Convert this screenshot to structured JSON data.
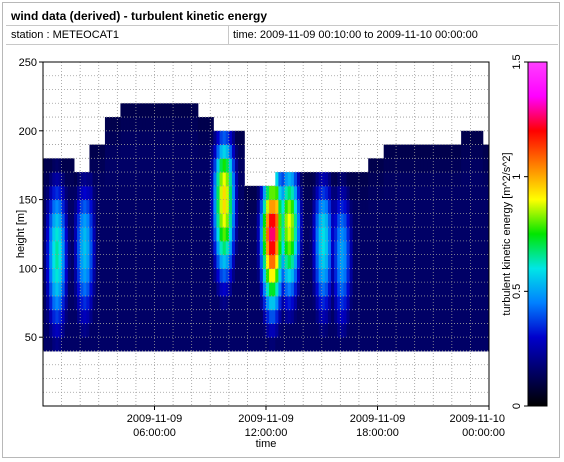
{
  "header": {
    "title": "wind data (derived) - turbulent kinetic energy",
    "station": "station : METEOCAT1",
    "time_range": "time: 2009-11-09 00:10:00 to 2009-11-10 00:00:00"
  },
  "colors": {
    "background": "#ffffff",
    "grid": "#9a9a9a",
    "colormap": [
      "#000000",
      "#000066",
      "#0000cc",
      "#0080ff",
      "#00e6e6",
      "#00e600",
      "#ffff00",
      "#ff8000",
      "#ff0000",
      "#ff00ff",
      "#ff40ff"
    ]
  },
  "chart_data": {
    "type": "heatmap",
    "xlabel": "time",
    "ylabel": "height [m]",
    "colorbar_label": "turbulent kinetic energy [m^2/s^2]",
    "x_ticks": [
      {
        "value": "2009-11-09 06:00:00",
        "date": "2009-11-09",
        "time": "06:00:00"
      },
      {
        "value": "2009-11-09 12:00:00",
        "date": "2009-11-09",
        "time": "12:00:00"
      },
      {
        "value": "2009-11-09 18:00:00",
        "date": "2009-11-09",
        "time": "18:00:00"
      },
      {
        "value": "2009-11-10 00:00:00",
        "date": "2009-11-10",
        "time": "00:00:00"
      }
    ],
    "xlim": [
      "2009-11-09 00:00:00",
      "2009-11-10 00:00:00"
    ],
    "ylim": [
      0,
      250
    ],
    "y_ticks": [
      50,
      100,
      150,
      200,
      250
    ],
    "colorbar_lim": [
      0,
      1.5
    ],
    "colorbar_ticks": [
      0,
      0.5,
      1,
      1.5
    ],
    "grid": true,
    "height_bins_m": [
      40,
      50,
      60,
      70,
      80,
      90,
      100,
      110,
      120,
      130,
      140,
      150,
      160,
      170,
      180,
      190,
      200,
      210,
      220,
      230
    ],
    "profile_top_m": [
      {
        "time": "2009-11-09 00:00:00",
        "top": 185
      },
      {
        "time": "2009-11-09 01:40:00",
        "top": 175
      },
      {
        "time": "2009-11-09 02:30:00",
        "top": 195
      },
      {
        "time": "2009-11-09 03:20:00",
        "top": 215
      },
      {
        "time": "2009-11-09 04:10:00",
        "top": 225
      },
      {
        "time": "2009-11-09 08:20:00",
        "top": 215
      },
      {
        "time": "2009-11-09 09:10:00",
        "top": 205
      },
      {
        "time": "2009-11-09 10:50:00",
        "top": 165
      },
      {
        "time": "2009-11-09 12:30:00",
        "top": 175
      },
      {
        "time": "2009-11-09 17:30:00",
        "top": 185
      },
      {
        "time": "2009-11-09 18:20:00",
        "top": 195
      },
      {
        "time": "2009-11-09 22:30:00",
        "top": 205
      },
      {
        "time": "2009-11-09 23:40:00",
        "top": 195
      }
    ],
    "hotspots": [
      {
        "time": "2009-11-09 00:40:00",
        "height_m": 110,
        "tke": 0.65
      },
      {
        "time": "2009-11-09 02:10:00",
        "height_m": 115,
        "tke": 0.55
      },
      {
        "time": "2009-11-09 09:40:00",
        "height_m": 150,
        "tke": 0.95
      },
      {
        "time": "2009-11-09 12:15:00",
        "height_m": 130,
        "tke": 1.3
      },
      {
        "time": "2009-11-09 13:10:00",
        "height_m": 135,
        "tke": 0.9
      },
      {
        "time": "2009-11-09 15:00:00",
        "height_m": 120,
        "tke": 0.6
      },
      {
        "time": "2009-11-09 16:00:00",
        "height_m": 110,
        "tke": 0.5
      }
    ],
    "background_tke": 0.15
  }
}
